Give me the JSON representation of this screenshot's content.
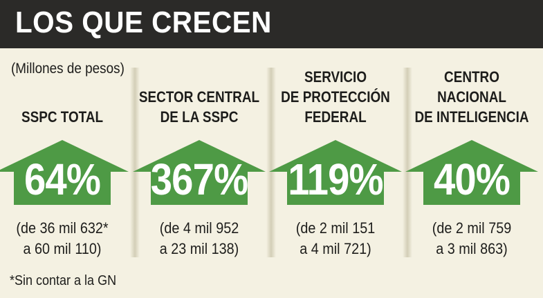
{
  "title": "LOS QUE CRECEN",
  "unit_note": "(Millones de pesos)",
  "footnote": "*Sin contar a la GN",
  "colors": {
    "header_bg": "#2b2a28",
    "arrow_green": "#4e9a45",
    "background": "#f4f1e2"
  },
  "chart_data": {
    "type": "table",
    "title": "LOS QUE CRECEN",
    "unit": "(Millones de pesos)",
    "categories": [
      "SSPC TOTAL",
      "SECTOR CENTRAL DE LA SSPC",
      "SERVICIO DE PROTECCIÓN FEDERAL",
      "CENTRO NACIONAL DE INTELIGENCIA"
    ],
    "items": [
      {
        "label_lines": [
          "SSPC TOTAL"
        ],
        "growth_pct": 64,
        "growth_label": "64%",
        "from_value": 36632,
        "to_value": 60110,
        "range_lines": [
          "(de 36 mil 632*",
          "a 60 mil 110)"
        ]
      },
      {
        "label_lines": [
          "SECTOR CENTRAL",
          "DE LA SSPC"
        ],
        "growth_pct": 367,
        "growth_label": "367%",
        "from_value": 4952,
        "to_value": 23138,
        "range_lines": [
          "(de 4 mil 952",
          "a 23 mil 138)"
        ]
      },
      {
        "label_lines": [
          "SERVICIO",
          "DE PROTECCIÓN",
          "FEDERAL"
        ],
        "growth_pct": 119,
        "growth_label": "119%",
        "from_value": 2151,
        "to_value": 4721,
        "range_lines": [
          "(de 2 mil 151",
          "a 4 mil 721)"
        ]
      },
      {
        "label_lines": [
          "CENTRO",
          "NACIONAL",
          "DE INTELIGENCIA"
        ],
        "growth_pct": 40,
        "growth_label": "40%",
        "from_value": 2759,
        "to_value": 3863,
        "range_lines": [
          "(de 2 mil 759",
          "a 3 mil 863)"
        ]
      }
    ]
  }
}
